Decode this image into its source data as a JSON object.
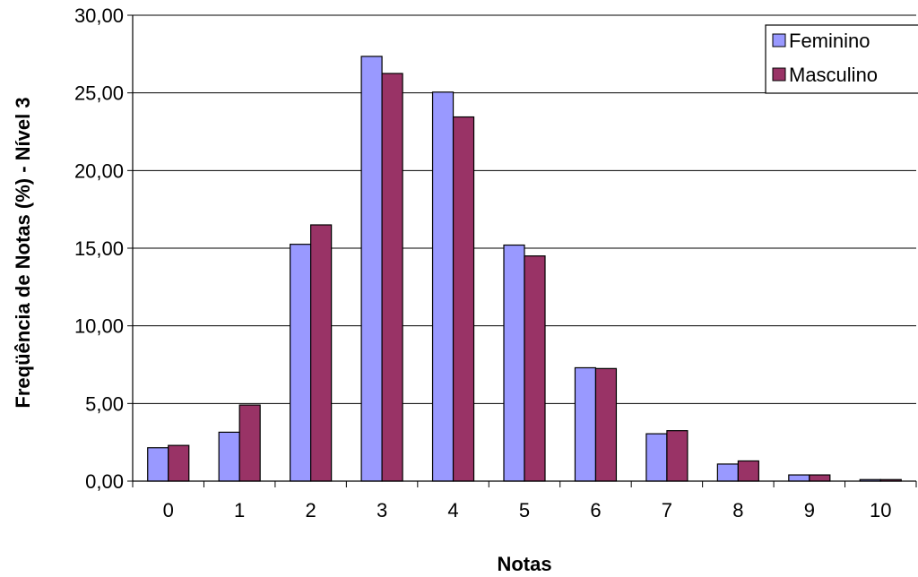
{
  "chart_data": {
    "type": "bar",
    "title": "",
    "xlabel": "Notas",
    "ylabel": "Freqüência de Notas (%) - Nível 3",
    "categories": [
      "0",
      "1",
      "2",
      "3",
      "4",
      "5",
      "6",
      "7",
      "8",
      "9",
      "10"
    ],
    "series": [
      {
        "name": "Feminino",
        "color": "#9999ff",
        "values": [
          2.15,
          3.15,
          15.25,
          27.35,
          25.05,
          15.2,
          7.3,
          3.05,
          1.1,
          0.4,
          0.1
        ]
      },
      {
        "name": "Masculino",
        "color": "#993366",
        "values": [
          2.3,
          4.9,
          16.5,
          26.25,
          23.45,
          14.5,
          7.25,
          3.25,
          1.3,
          0.4,
          0.1
        ]
      }
    ],
    "ylim": [
      0,
      30
    ],
    "yticks": [
      "0,00",
      "5,00",
      "10,00",
      "15,00",
      "20,00",
      "25,00",
      "30,00"
    ],
    "grid": true,
    "legend_position": "top-right"
  }
}
